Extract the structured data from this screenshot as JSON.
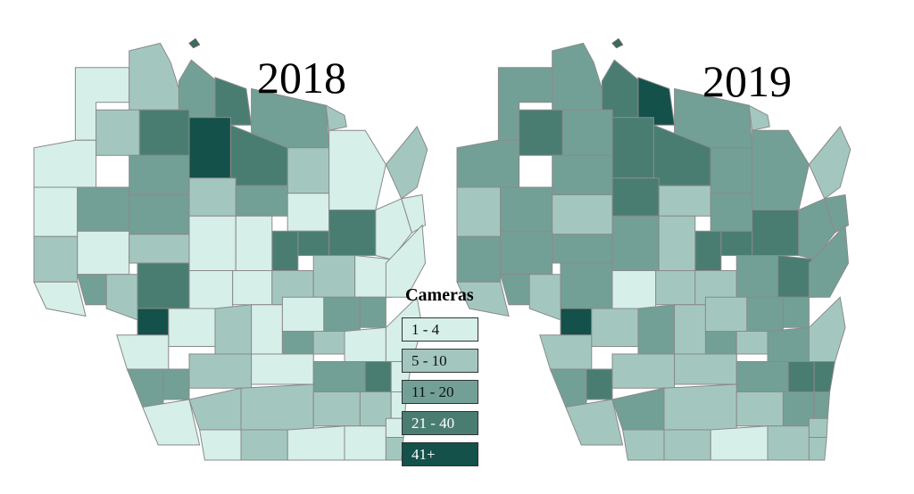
{
  "titles": {
    "left": "2018",
    "right": "2019"
  },
  "legend": {
    "title": "Cameras",
    "classes": [
      {
        "label": "1 - 4",
        "color": "#d6efe9"
      },
      {
        "label": "5 - 10",
        "color": "#a3c7bf"
      },
      {
        "label": "11 - 20",
        "color": "#72a096"
      },
      {
        "label": "21 - 40",
        "color": "#4a7d72"
      },
      {
        "label": "41+",
        "color": "#13514a"
      }
    ],
    "no_data_color": "#ffffff"
  },
  "counties_2018": [
    0,
    1,
    2,
    3,
    2,
    1,
    0,
    1,
    3,
    4,
    3,
    1,
    0,
    0,
    2,
    2,
    1,
    2,
    0,
    3,
    3,
    3,
    2,
    0,
    0,
    1,
    0,
    1,
    0,
    2,
    1,
    3,
    0,
    0,
    1,
    1,
    0,
    0,
    1,
    0,
    4,
    0,
    1,
    0,
    0,
    2,
    2,
    0,
    0,
    1,
    2,
    1,
    0,
    0,
    2,
    2,
    0,
    2,
    3,
    0,
    0,
    1,
    1,
    1,
    1,
    0,
    0,
    1,
    0,
    0,
    0,
    1
  ],
  "counties_2019": [
    2,
    2,
    3,
    4,
    2,
    1,
    2,
    3,
    2,
    3,
    3,
    2,
    2,
    1,
    2,
    2,
    3,
    1,
    2,
    3,
    3,
    3,
    1,
    2,
    1,
    2,
    2,
    2,
    1,
    2,
    1,
    2,
    0,
    1,
    1,
    2,
    3,
    2,
    1,
    2,
    4,
    1,
    2,
    1,
    1,
    2,
    2,
    2,
    1,
    1,
    2,
    1,
    2,
    1,
    2,
    3,
    1,
    2,
    3,
    3,
    1,
    2,
    1,
    1,
    2,
    2,
    1,
    1,
    0,
    1,
    1,
    1
  ]
}
